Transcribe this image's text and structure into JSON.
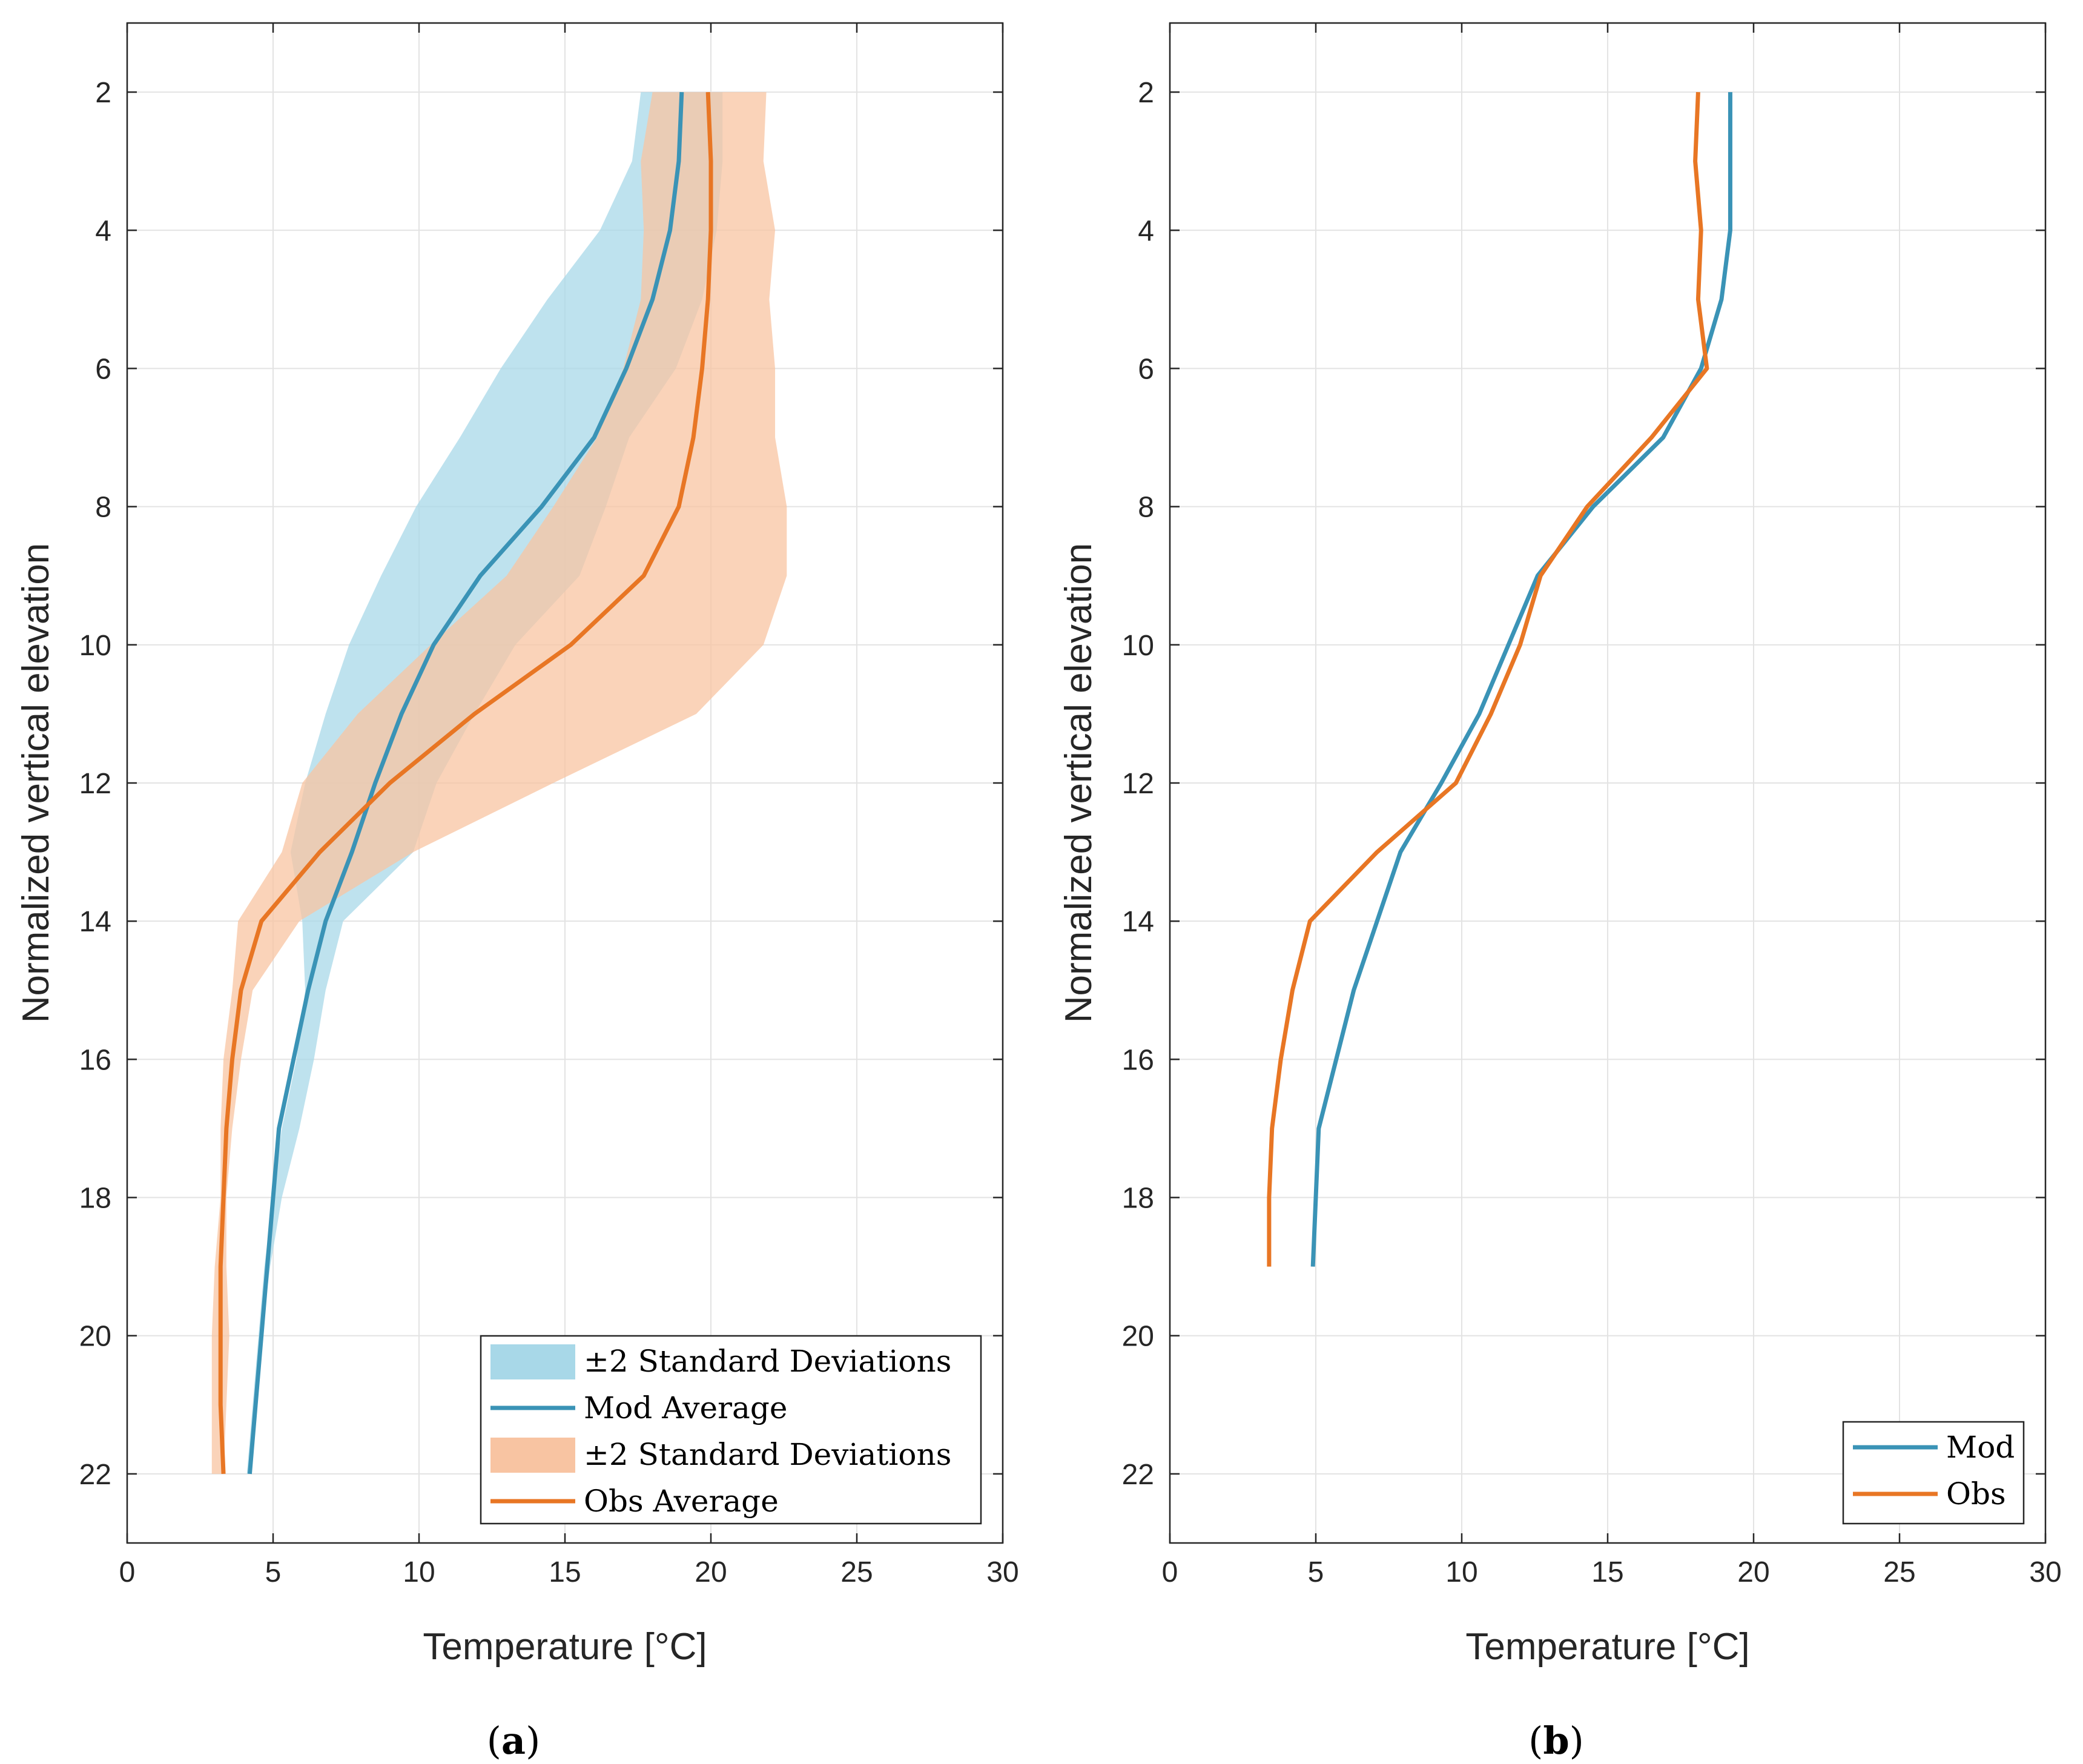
{
  "colors": {
    "mod": "#3a93b6",
    "obs": "#e87624",
    "mod_band": "#a8d8e8",
    "obs_band": "#f8c4a2",
    "grid": "#e3e3e3",
    "axis": "#262626"
  },
  "chart_data": [
    {
      "id": "a",
      "type": "line",
      "caption": "(a)",
      "caption_letter": "a",
      "xlabel": "Temperature [°C]",
      "ylabel": "Normalized vertical elevation",
      "xlim": [
        0,
        30
      ],
      "ylim": [
        1,
        23
      ],
      "y_reversed": true,
      "xticks": [
        0,
        5,
        10,
        15,
        20,
        25,
        30
      ],
      "yticks": [
        2,
        4,
        6,
        8,
        10,
        12,
        14,
        16,
        18,
        20,
        22
      ],
      "grid": true,
      "legend_position": "bottom-right",
      "bands": [
        {
          "name": "±2 Standard Deviations",
          "series": "Mod",
          "y": [
            2,
            3,
            4,
            5,
            6,
            7,
            8,
            9,
            10,
            11,
            12,
            13,
            14,
            15,
            16,
            17,
            18,
            19,
            20,
            21,
            22
          ],
          "lower": [
            17.6,
            17.3,
            16.2,
            14.4,
            12.8,
            11.4,
            9.9,
            8.7,
            7.6,
            6.8,
            6.1,
            5.6,
            6.0,
            6.1,
            5.8,
            5.3,
            5.0,
            4.7,
            4.5,
            4.3,
            4.1
          ],
          "upper": [
            20.4,
            20.4,
            20.2,
            19.7,
            18.8,
            17.2,
            16.4,
            15.5,
            13.3,
            11.9,
            10.6,
            9.8,
            7.4,
            6.8,
            6.4,
            5.9,
            5.3,
            4.9,
            4.6,
            4.4,
            4.2
          ]
        },
        {
          "name": "±2 Standard Deviations",
          "series": "Obs",
          "y": [
            2,
            3,
            4,
            5,
            6,
            7,
            8,
            9,
            10,
            11,
            12,
            13,
            14,
            15,
            16,
            17,
            18,
            19,
            20,
            21,
            22
          ],
          "lower": [
            18.0,
            17.6,
            17.7,
            17.6,
            17.0,
            16.1,
            14.6,
            13.0,
            10.4,
            7.9,
            6.0,
            5.3,
            3.8,
            3.6,
            3.3,
            3.2,
            3.2,
            3.0,
            2.9,
            2.9,
            2.9
          ],
          "upper": [
            21.9,
            21.8,
            22.2,
            22.0,
            22.2,
            22.2,
            22.6,
            22.6,
            21.8,
            19.5,
            14.6,
            9.8,
            5.9,
            4.3,
            3.9,
            3.6,
            3.4,
            3.4,
            3.5,
            3.4,
            3.3
          ]
        }
      ],
      "series": [
        {
          "name": "Mod Average",
          "color_key": "mod",
          "y": [
            2,
            3,
            4,
            5,
            6,
            7,
            8,
            9,
            10,
            11,
            12,
            13,
            14,
            15,
            16,
            17,
            18,
            19,
            20,
            21,
            22
          ],
          "x": [
            19.0,
            18.9,
            18.6,
            18.0,
            17.1,
            16.0,
            14.2,
            12.1,
            10.5,
            9.4,
            8.5,
            7.7,
            6.8,
            6.2,
            5.7,
            5.2,
            5.0,
            4.8,
            4.6,
            4.4,
            4.2
          ]
        },
        {
          "name": "Obs Average",
          "color_key": "obs",
          "y": [
            2,
            3,
            4,
            5,
            6,
            7,
            8,
            9,
            10,
            11,
            12,
            13,
            14,
            15,
            16,
            17,
            18,
            19,
            20,
            21,
            22
          ],
          "x": [
            19.9,
            20.0,
            20.0,
            19.9,
            19.7,
            19.4,
            18.9,
            17.7,
            15.2,
            11.9,
            9.0,
            6.6,
            4.6,
            3.9,
            3.6,
            3.4,
            3.3,
            3.2,
            3.2,
            3.2,
            3.3
          ]
        }
      ],
      "legend": [
        {
          "label": "±2 Standard Deviations",
          "kind": "patch",
          "color_key": "mod_band"
        },
        {
          "label": "Mod Average",
          "kind": "line",
          "color_key": "mod"
        },
        {
          "label": "±2 Standard Deviations",
          "kind": "patch",
          "color_key": "obs_band"
        },
        {
          "label": "Obs Average",
          "kind": "line",
          "color_key": "obs"
        }
      ]
    },
    {
      "id": "b",
      "type": "line",
      "caption": "(b)",
      "caption_letter": "b",
      "xlabel": "Temperature [°C]",
      "ylabel": "Normalized vertical elevation",
      "xlim": [
        0,
        30
      ],
      "ylim": [
        1,
        23
      ],
      "y_reversed": true,
      "xticks": [
        0,
        5,
        10,
        15,
        20,
        25,
        30
      ],
      "yticks": [
        2,
        4,
        6,
        8,
        10,
        12,
        14,
        16,
        18,
        20,
        22
      ],
      "grid": true,
      "legend_position": "bottom-right",
      "bands": [],
      "series": [
        {
          "name": "Mod",
          "color_key": "mod",
          "y": [
            2,
            3,
            4,
            5,
            6,
            7,
            8,
            9,
            10,
            11,
            12,
            13,
            14,
            15,
            16,
            17,
            18,
            19
          ],
          "x": [
            19.2,
            19.2,
            19.2,
            18.9,
            18.2,
            16.9,
            14.5,
            12.6,
            11.6,
            10.6,
            9.3,
            7.9,
            7.1,
            6.3,
            5.7,
            5.1,
            5.0,
            4.9
          ]
        },
        {
          "name": "Obs",
          "color_key": "obs",
          "y": [
            2,
            3,
            4,
            5,
            6,
            7,
            8,
            9,
            10,
            11,
            12,
            13,
            14,
            15,
            16,
            17,
            18,
            19
          ],
          "x": [
            18.1,
            18.0,
            18.2,
            18.1,
            18.4,
            16.5,
            14.3,
            12.7,
            12.0,
            11.0,
            9.8,
            7.1,
            4.8,
            4.2,
            3.8,
            3.5,
            3.4,
            3.4
          ]
        }
      ],
      "legend": [
        {
          "label": "Mod",
          "kind": "line",
          "color_key": "mod"
        },
        {
          "label": "Obs",
          "kind": "line",
          "color_key": "obs"
        }
      ]
    }
  ]
}
